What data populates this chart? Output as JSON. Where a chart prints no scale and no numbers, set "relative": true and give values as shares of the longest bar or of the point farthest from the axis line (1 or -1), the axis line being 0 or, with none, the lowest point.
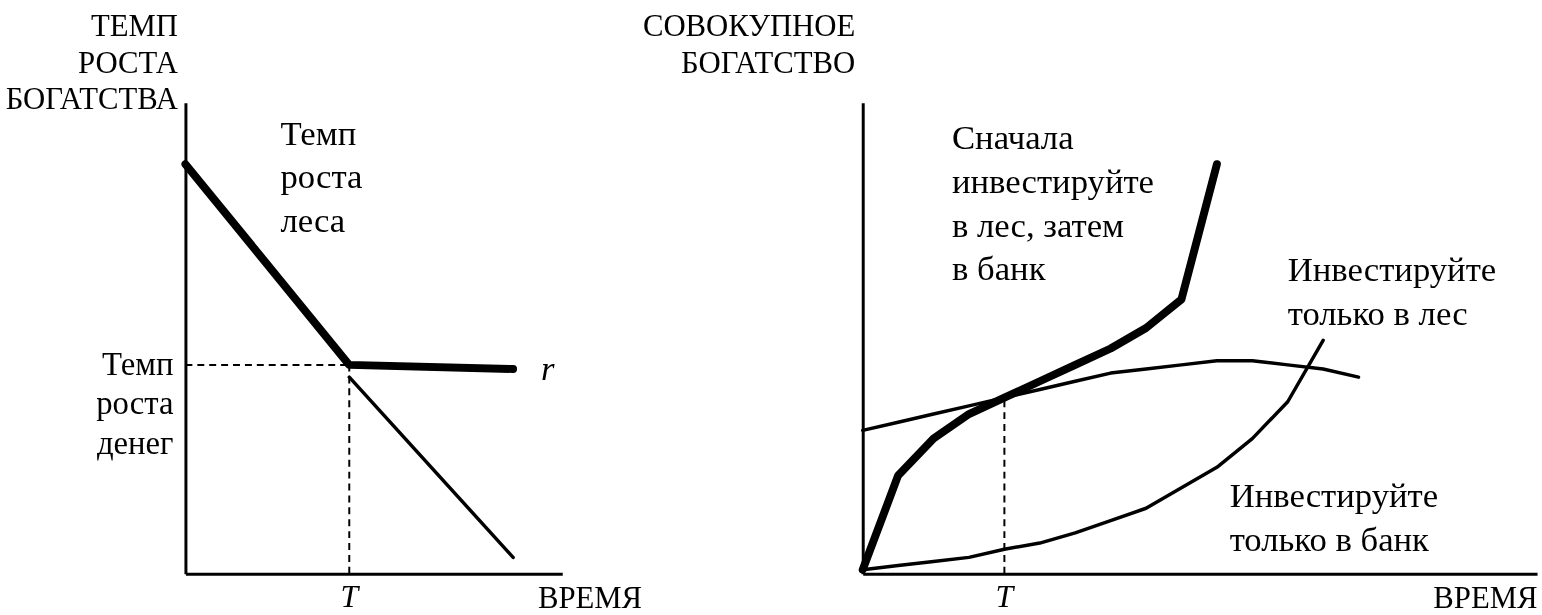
{
  "chart_data": [
    {
      "type": "line",
      "relative": true,
      "xlabel": "ВРЕМЯ",
      "ylabel": "ТЕМП\nРОСТА\nБОГАТСТВА",
      "categories": [
        null,
        null,
        null
      ],
      "series": [
        {
          "color": "#000000",
          "values": [
            1,
            0.51,
            0.5
          ]
        },
        {
          "color": "#000000",
          "values": [
            null,
            0.48,
            0.04
          ]
        }
      ],
      "ref_lines": [
        {
          "axis": "y",
          "value": 0.51,
          "label": "Темп\nроста\nденег",
          "line_style": "dashed",
          "color": "#000000"
        },
        {
          "axis": "x",
          "label": "T",
          "line_style": "dashed",
          "color": "#000000"
        }
      ],
      "annotations": [
        "Темп\nроста\nлеса",
        "r"
      ]
    },
    {
      "type": "line",
      "relative": true,
      "xlabel": "ВРЕМЯ",
      "ylabel": "СОВОКУПНОЕ\nБОГАТСТВО",
      "categories": [
        null,
        null,
        null,
        null,
        null,
        null,
        null,
        null,
        null,
        null,
        null,
        null,
        null,
        null,
        null
      ],
      "series": [
        {
          "color": "#000000",
          "values": [
            0.01,
            0.24,
            0.33,
            0.39,
            0.43,
            0.47,
            0.51,
            0.55,
            0.6,
            0.67,
            1,
            null,
            null,
            null,
            null
          ]
        },
        {
          "color": "#000000",
          "values": [
            0.35,
            0.37,
            0.39,
            0.41,
            0.43,
            0.45,
            0.47,
            0.49,
            0.5,
            0.51,
            0.52,
            0.52,
            0.51,
            0.5,
            0.48
          ]
        },
        {
          "color": "#000000",
          "values": [
            0.01,
            0.02,
            0.03,
            0.04,
            0.06,
            0.075,
            0.1,
            0.13,
            0.16,
            0.21,
            0.26,
            0.33,
            0.42,
            0.57,
            null
          ]
        }
      ],
      "ref_lines": [
        {
          "axis": "x",
          "label": "T",
          "line_style": "dashed",
          "color": "#000000"
        }
      ],
      "annotations": [
        "Сначала\nинвестируйте\nв лес, затем\nв банк",
        "Инвестируйте\nтолько в лес",
        "Инвестируйте\nтолько в банк"
      ]
    }
  ]
}
